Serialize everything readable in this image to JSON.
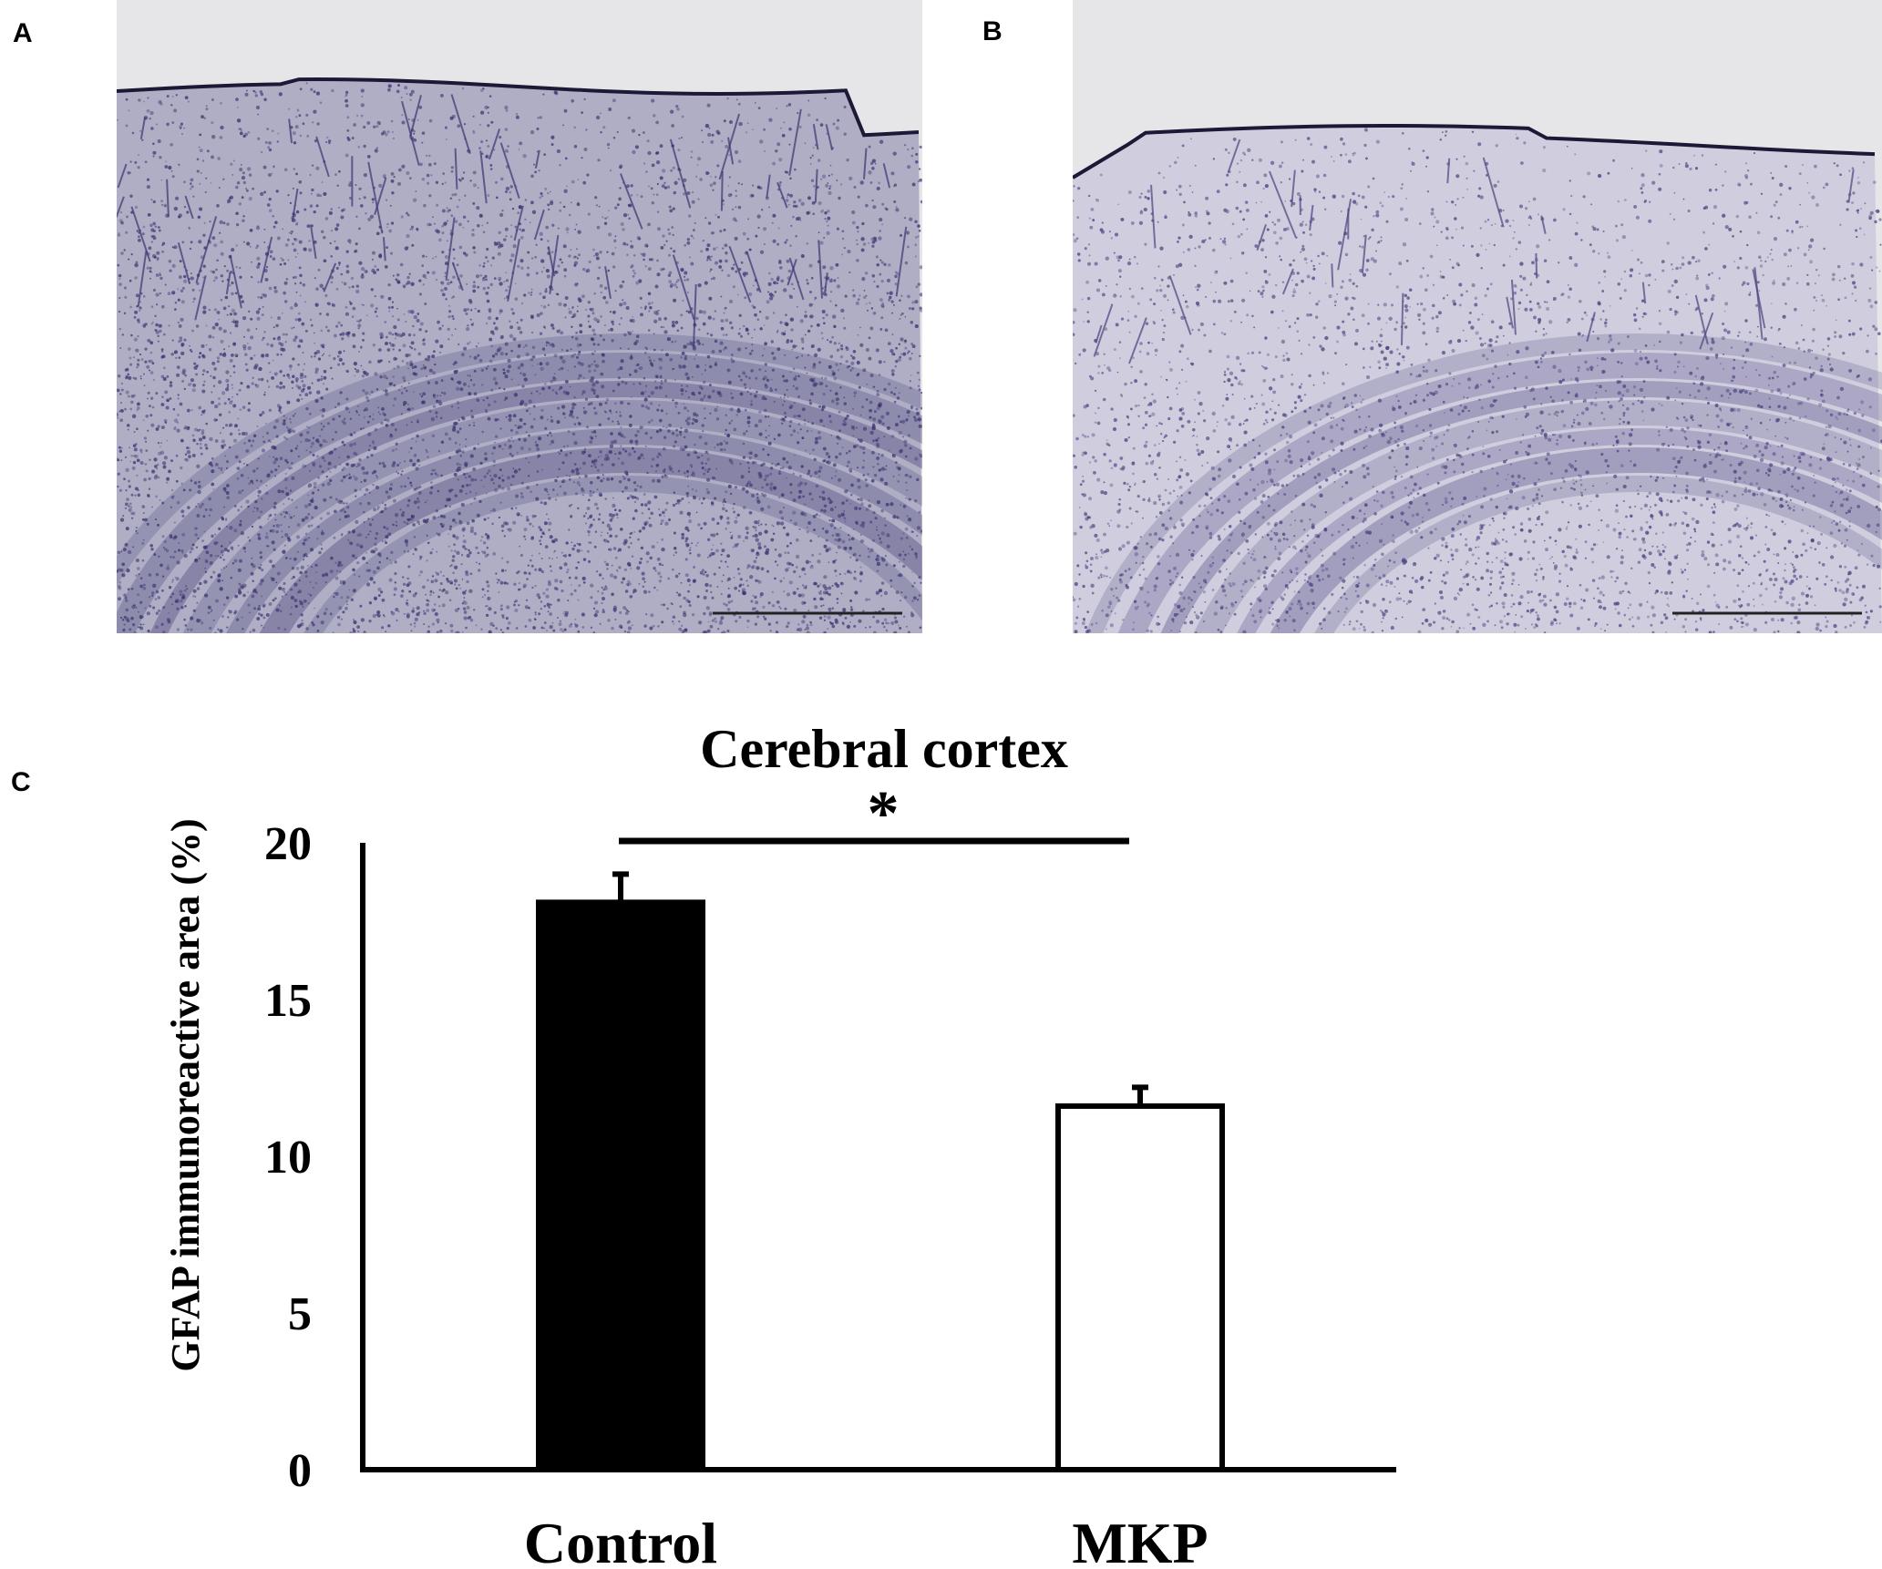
{
  "panels": {
    "a": "A",
    "b": "B",
    "c": "C"
  },
  "micrographs": [
    {
      "panel": "A",
      "stain_color": "#3b3570",
      "density": "high"
    },
    {
      "panel": "B",
      "stain_color": "#4a4580",
      "density": "low"
    }
  ],
  "chart_data": {
    "type": "bar",
    "title": "Cerebral cortex",
    "ylabel": "GFAP immunoreactive area (%)",
    "xlabel": "",
    "categories": [
      "Control",
      "MKP"
    ],
    "values": [
      18.1,
      11.6
    ],
    "errors": [
      0.9,
      0.6
    ],
    "bar_colors": [
      "#000000",
      "#ffffff"
    ],
    "ylim": [
      0,
      20
    ],
    "yticks": [
      "0",
      "5",
      "10",
      "15",
      "20"
    ],
    "significance": {
      "from": "Control",
      "to": "MKP",
      "label": "*"
    },
    "grid": false,
    "legend": "none"
  }
}
